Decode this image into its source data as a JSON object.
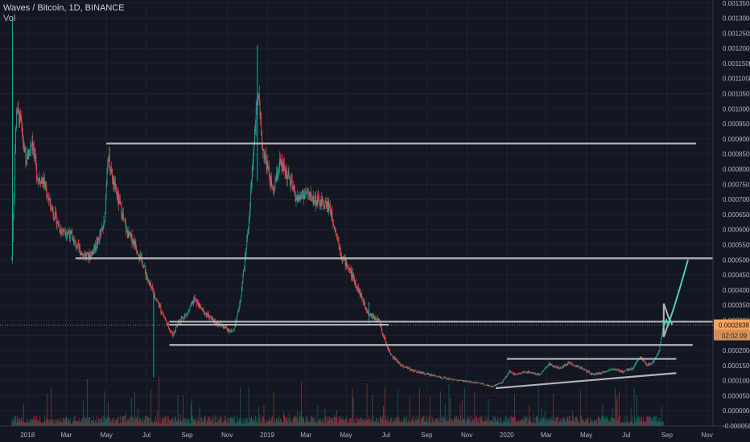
{
  "legend": {
    "title": "Waves / Bitcoin, 1D, BINANCE",
    "volume_label": "Vol"
  },
  "colors": {
    "background": "#131722",
    "up": "#26a69a",
    "down": "#ef5350",
    "drawing": "#b2b5be",
    "projection": "#4fd1b5",
    "price_line": "#f7a35c",
    "price_tag": "#f7a35c"
  },
  "chart_data": {
    "type": "candlestick",
    "symbol": "Waves / Bitcoin",
    "interval": "1D",
    "exchange": "BINANCE",
    "y_axis": {
      "range": [
        -5e-05,
        0.00136
      ],
      "ticks": [
        "0.0013500",
        "0.0013000",
        "0.0012500",
        "0.0012000",
        "0.0011500",
        "0.0011000",
        "0.0010500",
        "0.0010000",
        "0.0009500",
        "0.0009000",
        "0.0008500",
        "0.0008000",
        "0.0007500",
        "0.0007000",
        "0.0006500",
        "0.0006000",
        "0.0005500",
        "0.0005000",
        "0.0004500",
        "0.0004000",
        "0.0003500",
        "0.0003000",
        "0.0002500",
        "0.0002000",
        "0.0001500",
        "0.0001000",
        "0.0000500",
        "0.0000000",
        "-0.0000500"
      ]
    },
    "x_axis": {
      "range": [
        "2017-11-20",
        "2020-11-10"
      ],
      "ticks": [
        {
          "date": "2018-01-01",
          "label": "2018"
        },
        {
          "date": "2018-03-01",
          "label": "Mar"
        },
        {
          "date": "2018-05-01",
          "label": "May"
        },
        {
          "date": "2018-07-01",
          "label": "Jul"
        },
        {
          "date": "2018-09-01",
          "label": "Sep"
        },
        {
          "date": "2018-11-01",
          "label": "Nov"
        },
        {
          "date": "2019-01-01",
          "label": "2019"
        },
        {
          "date": "2019-03-01",
          "label": "Mar"
        },
        {
          "date": "2019-05-01",
          "label": "May"
        },
        {
          "date": "2019-07-01",
          "label": "Jul"
        },
        {
          "date": "2019-09-01",
          "label": "Sep"
        },
        {
          "date": "2019-11-01",
          "label": "Nov"
        },
        {
          "date": "2020-01-01",
          "label": "2020"
        },
        {
          "date": "2020-03-01",
          "label": "Mar"
        },
        {
          "date": "2020-05-01",
          "label": "May"
        },
        {
          "date": "2020-07-01",
          "label": "Jul"
        },
        {
          "date": "2020-09-01",
          "label": "Sep"
        },
        {
          "date": "2020-11-01",
          "label": "Nov"
        }
      ]
    },
    "close_path": [
      [
        "2017-12-08",
        0.0005
      ],
      [
        "2017-12-15",
        0.001
      ],
      [
        "2017-12-22",
        0.00095
      ],
      [
        "2017-12-29",
        0.00082
      ],
      [
        "2018-01-08",
        0.0009
      ],
      [
        "2018-01-15",
        0.00078
      ],
      [
        "2018-01-25",
        0.00076
      ],
      [
        "2018-02-05",
        0.00068
      ],
      [
        "2018-02-20",
        0.0006
      ],
      [
        "2018-03-05",
        0.00059
      ],
      [
        "2018-03-15",
        0.00055
      ],
      [
        "2018-03-25",
        0.00052
      ],
      [
        "2018-04-05",
        0.00051
      ],
      [
        "2018-04-18",
        0.00056
      ],
      [
        "2018-04-28",
        0.00062
      ],
      [
        "2018-05-03",
        0.00085
      ],
      [
        "2018-05-12",
        0.00075
      ],
      [
        "2018-05-22",
        0.00068
      ],
      [
        "2018-06-01",
        0.00059
      ],
      [
        "2018-06-12",
        0.00056
      ],
      [
        "2018-06-25",
        0.00049
      ],
      [
        "2018-07-05",
        0.00042
      ],
      [
        "2018-07-18",
        0.00036
      ],
      [
        "2018-08-01",
        0.00029
      ],
      [
        "2018-08-10",
        0.00025
      ],
      [
        "2018-08-20",
        0.0003
      ],
      [
        "2018-09-01",
        0.00032
      ],
      [
        "2018-09-12",
        0.00037
      ],
      [
        "2018-09-25",
        0.00033
      ],
      [
        "2018-10-10",
        0.0003
      ],
      [
        "2018-10-25",
        0.00028
      ],
      [
        "2018-11-10",
        0.00026
      ],
      [
        "2018-11-20",
        0.00035
      ],
      [
        "2018-11-28",
        0.0005
      ],
      [
        "2018-12-05",
        0.00065
      ],
      [
        "2018-12-12",
        0.0009
      ],
      [
        "2018-12-18",
        0.00105
      ],
      [
        "2018-12-24",
        0.00088
      ],
      [
        "2019-01-02",
        0.0008
      ],
      [
        "2019-01-10",
        0.00072
      ],
      [
        "2019-01-20",
        0.00082
      ],
      [
        "2019-02-01",
        0.00078
      ],
      [
        "2019-02-15",
        0.0007
      ],
      [
        "2019-03-01",
        0.00072
      ],
      [
        "2019-03-20",
        0.00069
      ],
      [
        "2019-04-05",
        0.00068
      ],
      [
        "2019-04-15",
        0.0006
      ],
      [
        "2019-04-25",
        0.00051
      ],
      [
        "2019-05-08",
        0.00046
      ],
      [
        "2019-05-20",
        0.0004
      ],
      [
        "2019-06-05",
        0.00032
      ],
      [
        "2019-06-20",
        0.0003
      ],
      [
        "2019-07-01",
        0.00022
      ],
      [
        "2019-07-10",
        0.00018
      ],
      [
        "2019-07-25",
        0.00015
      ],
      [
        "2019-08-15",
        0.00013
      ],
      [
        "2019-09-05",
        0.00012
      ],
      [
        "2019-09-25",
        0.00011
      ],
      [
        "2019-10-20",
        0.0001
      ],
      [
        "2019-11-10",
        9.5e-05
      ],
      [
        "2019-11-25",
        9e-05
      ],
      [
        "2019-12-10",
        8e-05
      ],
      [
        "2019-12-25",
        9.5e-05
      ],
      [
        "2020-01-05",
        0.00013
      ],
      [
        "2020-01-15",
        0.00012
      ],
      [
        "2020-02-01",
        0.00013
      ],
      [
        "2020-02-20",
        0.00012
      ],
      [
        "2020-03-05",
        0.000155
      ],
      [
        "2020-03-20",
        0.00014
      ],
      [
        "2020-04-05",
        0.00016
      ],
      [
        "2020-04-25",
        0.00014
      ],
      [
        "2020-05-10",
        0.00012
      ],
      [
        "2020-05-25",
        0.000125
      ],
      [
        "2020-06-10",
        0.00014
      ],
      [
        "2020-06-25",
        0.00013
      ],
      [
        "2020-07-10",
        0.00014
      ],
      [
        "2020-07-22",
        0.00018
      ],
      [
        "2020-08-01",
        0.00015
      ],
      [
        "2020-08-10",
        0.00016
      ],
      [
        "2020-08-20",
        0.0002
      ],
      [
        "2020-08-26",
        0.000284
      ]
    ],
    "spikes": [
      {
        "date": "2017-12-09",
        "high": 0.0013,
        "low": 0.0005
      },
      {
        "date": "2018-07-12",
        "high": 0.00039,
        "low": 0.00011
      },
      {
        "date": "2018-12-17",
        "high": 0.00121,
        "low": 0.00076
      },
      {
        "date": "2019-06-05",
        "high": 0.00036,
        "low": 0.00029
      }
    ],
    "horizontal_levels": [
      {
        "price": 0.000885,
        "from": "2018-05-01",
        "to": "2020-10-15"
      },
      {
        "price": 0.000505,
        "from": "2018-03-15",
        "to": "2020-11-10"
      },
      {
        "price": 0.000295,
        "from": "2018-08-05",
        "to": "2020-11-10"
      },
      {
        "price": 0.000285,
        "from": "2018-08-05",
        "to": "2019-07-05"
      },
      {
        "price": 0.000218,
        "from": "2018-08-05",
        "to": "2020-10-10"
      },
      {
        "price": 0.000172,
        "from": "2020-01-01",
        "to": "2020-09-15"
      }
    ],
    "trend_lines": [
      {
        "from": [
          "2019-12-15",
          7.5e-05
        ],
        "to": [
          "2020-09-15",
          0.000125
        ]
      }
    ],
    "projection": {
      "triangle": [
        [
          "2020-08-27",
          0.000355
        ],
        [
          "2020-09-05",
          0.0003
        ],
        [
          "2020-08-27",
          0.000245
        ]
      ],
      "zigzag": [
        [
          "2020-08-25",
          0.0003
        ],
        [
          "2020-08-28",
          0.000285
        ],
        [
          "2020-08-31",
          0.0003
        ],
        [
          "2020-09-03",
          0.000285
        ],
        [
          "2020-09-06",
          0.0003
        ],
        [
          "2020-09-09",
          0.000285
        ]
      ],
      "curve": [
        [
          "2020-09-05",
          0.0003
        ],
        [
          "2020-09-15",
          0.00036
        ],
        [
          "2020-09-25",
          0.00044
        ],
        [
          "2020-10-03",
          0.0005
        ]
      ]
    },
    "last_price": {
      "value": "0.0002838",
      "countdown": "02:02:09",
      "price": 0.0002838
    }
  }
}
